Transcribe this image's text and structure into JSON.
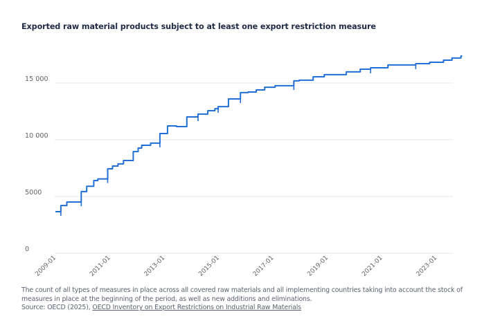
{
  "title": "Exported raw material products subject to at least one export restriction measure",
  "footer": {
    "note": "The count of all types of measures in place across all covered raw materials and all implementing countries taking into account the stock of measures in place at the beginning of the period, as well as new additions and eliminations.",
    "source_prefix": "Source: OECD (2025), ",
    "source_link": "OECD Inventory on Export Restrictions on Industrial Raw Materials"
  },
  "chart_data": {
    "type": "line",
    "title": "Exported raw material products subject to at least one export restriction measure",
    "xlabel": "",
    "ylabel": "",
    "line_color": "#1f6fd6",
    "step": true,
    "ylim": [
      0,
      17500
    ],
    "xlim": [
      "2009-01",
      "2024-06"
    ],
    "y_ticks": [
      0,
      5000,
      10000,
      15000
    ],
    "y_tick_labels": [
      "0",
      "5000",
      "10 000",
      "15 000"
    ],
    "x_tick_labels": [
      "2009-01",
      "2011-01",
      "2013-01",
      "2015-01",
      "2017-01",
      "2019-01",
      "2021-01",
      "2023-01"
    ],
    "grid": true,
    "legend": "none",
    "series": [
      {
        "name": "Exported raw material products",
        "x": [
          2009.0,
          2009.2,
          2009.42,
          2009.95,
          2010.15,
          2010.41,
          2010.56,
          2010.92,
          2011.1,
          2011.3,
          2011.5,
          2011.86,
          2012.04,
          2012.17,
          2012.5,
          2012.84,
          2013.12,
          2013.45,
          2013.83,
          2014.24,
          2014.6,
          2014.86,
          2014.98,
          2015.36,
          2015.8,
          2016.08,
          2016.38,
          2016.69,
          2017.07,
          2017.76,
          2017.96,
          2018.47,
          2018.88,
          2019.69,
          2020.2,
          2020.58,
          2021.22,
          2022.24,
          2022.75,
          2023.26,
          2023.57,
          2023.9
        ],
        "values": [
          3660,
          4200,
          4510,
          5430,
          5900,
          6400,
          6550,
          7440,
          7680,
          7870,
          8170,
          8960,
          9270,
          9510,
          9700,
          10550,
          11220,
          11160,
          12010,
          12260,
          12560,
          12740,
          12920,
          13600,
          14150,
          14210,
          14390,
          14630,
          14760,
          15190,
          15250,
          15550,
          15740,
          15980,
          16220,
          16340,
          16590,
          16710,
          16830,
          17010,
          17200,
          17380
        ]
      }
    ]
  }
}
